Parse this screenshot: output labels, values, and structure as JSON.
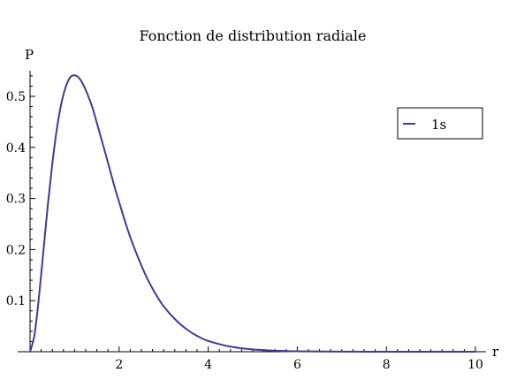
{
  "chart_data": {
    "type": "line",
    "title": "Fonction de distribution radiale",
    "xlabel": "r",
    "ylabel": "P",
    "xlim": [
      0,
      10
    ],
    "ylim": [
      0,
      0.55
    ],
    "x_ticks": [
      2,
      4,
      6,
      8,
      10
    ],
    "y_ticks": [
      0.1,
      0.2,
      0.3,
      0.4,
      0.5
    ],
    "x_tick_labels": [
      "2",
      "4",
      "6",
      "8",
      "10"
    ],
    "y_tick_labels": [
      "0.1",
      "0.2",
      "0.3",
      "0.4",
      "0.5"
    ],
    "legend_position": "top-right",
    "grid": false,
    "series": [
      {
        "name": "1s",
        "color": "#3c3c96",
        "x": [
          0,
          0.1,
          0.2,
          0.3,
          0.4,
          0.5,
          0.6,
          0.7,
          0.8,
          0.9,
          1.0,
          1.1,
          1.2,
          1.3,
          1.4,
          1.5,
          1.6,
          1.7,
          1.8,
          1.9,
          2.0,
          2.2,
          2.4,
          2.6,
          2.8,
          3.0,
          3.25,
          3.5,
          3.75,
          4.0,
          4.5,
          5.0,
          5.5,
          6.0,
          6.5,
          7.0,
          7.5,
          8.0,
          8.5,
          9.0,
          9.5,
          10.0
        ],
        "values": [
          0.0,
          0.033,
          0.107,
          0.197,
          0.288,
          0.368,
          0.435,
          0.485,
          0.518,
          0.537,
          0.541,
          0.536,
          0.522,
          0.502,
          0.478,
          0.448,
          0.417,
          0.386,
          0.354,
          0.322,
          0.293,
          0.237,
          0.19,
          0.149,
          0.116,
          0.089,
          0.064,
          0.045,
          0.031,
          0.021,
          0.0099,
          0.0045,
          0.002,
          0.00089,
          0.00038,
          0.00016,
          7e-05,
          3e-05,
          1e-05,
          0.0,
          0.0,
          0.0
        ]
      }
    ]
  }
}
